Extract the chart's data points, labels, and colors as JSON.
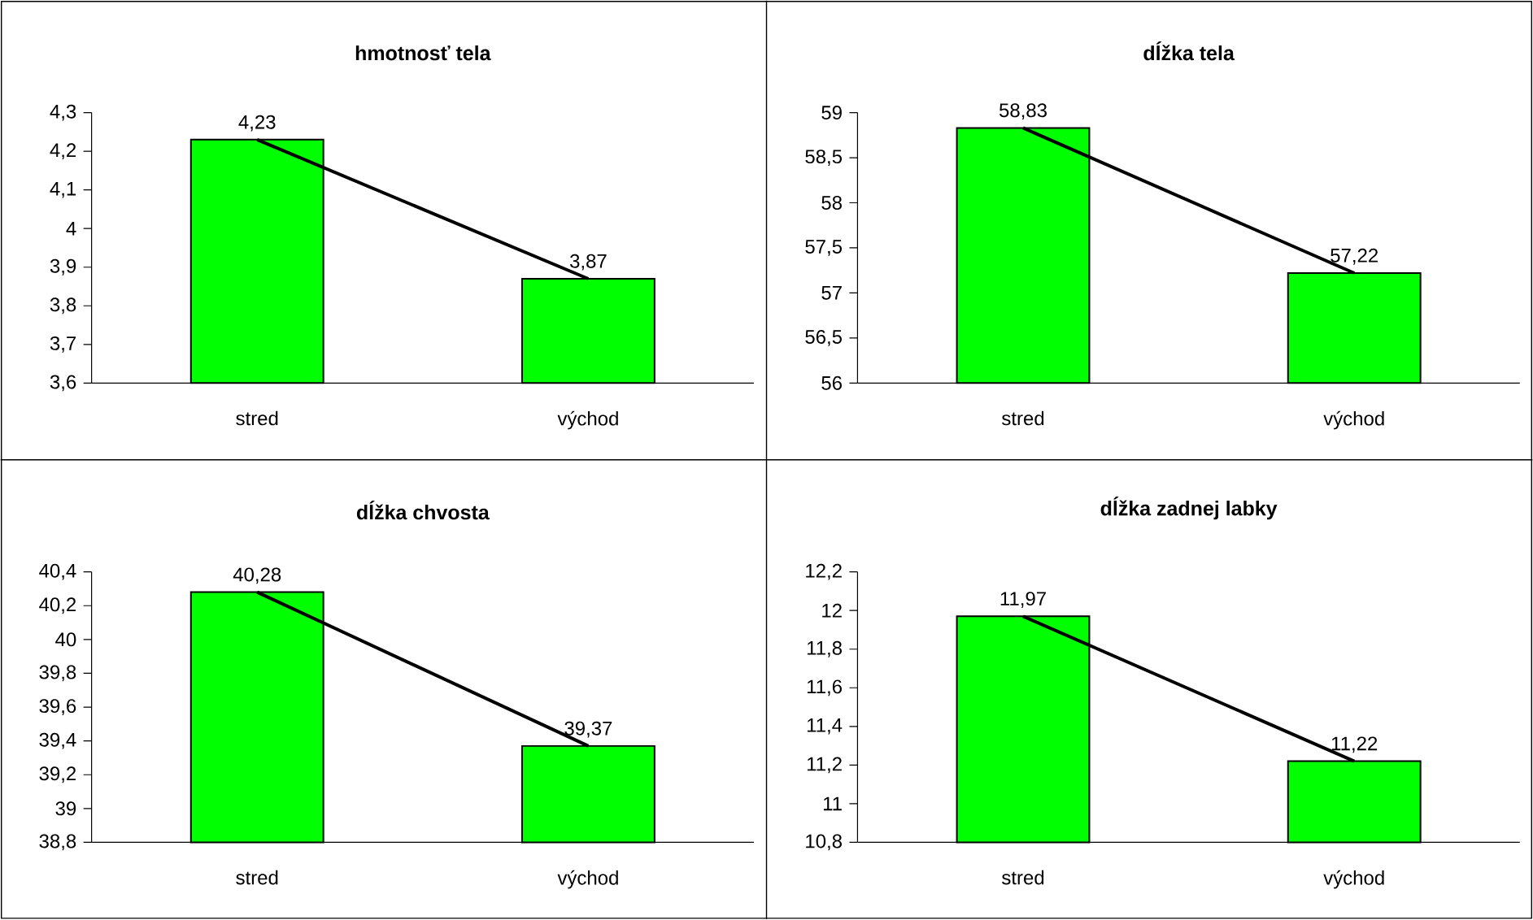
{
  "chart_data": [
    {
      "type": "bar",
      "title": "hmotnosť tela",
      "categories": [
        "stred",
        "východ"
      ],
      "series": [
        {
          "type": "bar",
          "color": "#00ff00",
          "values": [
            4.23,
            3.87
          ],
          "value_labels": [
            "4,23",
            "3,87"
          ]
        },
        {
          "type": "line",
          "color": "#000000",
          "values": [
            4.23,
            3.87
          ]
        }
      ],
      "ylim": [
        3.6,
        4.3
      ],
      "yticks": [
        {
          "value": 3.6,
          "label": "3,6"
        },
        {
          "value": 3.7,
          "label": "3,7"
        },
        {
          "value": 3.8,
          "label": "3,8"
        },
        {
          "value": 3.9,
          "label": "3,9"
        },
        4,
        {
          "value": 4.1,
          "label": "4,1"
        },
        {
          "value": 4.2,
          "label": "4,2"
        },
        {
          "value": 4.3,
          "label": "4,3"
        }
      ]
    },
    {
      "type": "bar",
      "title": "dĺžka tela",
      "categories": [
        "stred",
        "východ"
      ],
      "series": [
        {
          "type": "bar",
          "color": "#00ff00",
          "values": [
            58.83,
            57.22
          ],
          "value_labels": [
            "58,83",
            "57,22"
          ]
        },
        {
          "type": "line",
          "color": "#000000",
          "values": [
            58.83,
            57.22
          ]
        }
      ],
      "ylim": [
        56,
        59
      ],
      "yticks": [
        56,
        {
          "value": 56.5,
          "label": "56,5"
        },
        57,
        {
          "value": 57.5,
          "label": "57,5"
        },
        58,
        {
          "value": 58.5,
          "label": "58,5"
        },
        59
      ]
    },
    {
      "type": "bar",
      "title": "dĺžka chvosta",
      "categories": [
        "stred",
        "východ"
      ],
      "series": [
        {
          "type": "bar",
          "color": "#00ff00",
          "values": [
            40.28,
            39.37
          ],
          "value_labels": [
            "40,28",
            "39,37"
          ]
        },
        {
          "type": "line",
          "color": "#000000",
          "values": [
            40.28,
            39.37
          ]
        }
      ],
      "ylim": [
        38.8,
        40.4
      ],
      "yticks": [
        {
          "value": 38.8,
          "label": "38,8"
        },
        39,
        {
          "value": 39.2,
          "label": "39,2"
        },
        {
          "value": 39.4,
          "label": "39,4"
        },
        {
          "value": 39.6,
          "label": "39,6"
        },
        {
          "value": 39.8,
          "label": "39,8"
        },
        40,
        {
          "value": 40.2,
          "label": "40,2"
        },
        {
          "value": 40.4,
          "label": "40,4"
        }
      ]
    },
    {
      "type": "bar",
      "title": "dĺžka zadnej labky",
      "categories": [
        "stred",
        "východ"
      ],
      "series": [
        {
          "type": "bar",
          "color": "#00ff00",
          "values": [
            11.97,
            11.22
          ],
          "value_labels": [
            "11,97",
            "11,22"
          ]
        },
        {
          "type": "line",
          "color": "#000000",
          "values": [
            11.97,
            11.22
          ]
        }
      ],
      "ylim": [
        10.8,
        12.2
      ],
      "yticks": [
        {
          "value": 10.8,
          "label": "10,8"
        },
        11,
        {
          "value": 11.2,
          "label": "11,2"
        },
        {
          "value": 11.4,
          "label": "11,4"
        },
        {
          "value": 11.6,
          "label": "11,6"
        },
        {
          "value": 11.8,
          "label": "11,8"
        },
        12,
        {
          "value": 12.2,
          "label": "12,2"
        }
      ]
    }
  ]
}
